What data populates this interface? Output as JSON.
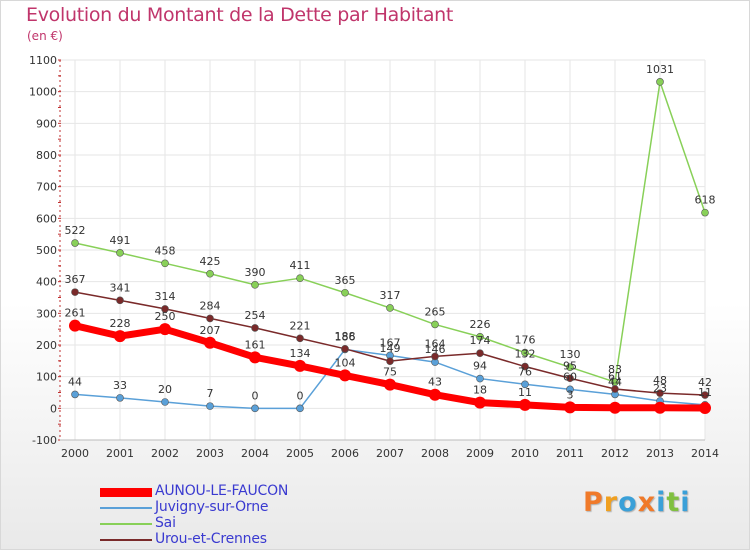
{
  "header": {
    "title": "Evolution du Montant de la Dette par Habitant",
    "unit": "(en €)"
  },
  "chart_data": {
    "type": "line",
    "title": "Evolution du Montant de la Dette par Habitant",
    "ylabel": "(en €)",
    "xlabel": "",
    "ylim": [
      -100,
      1100
    ],
    "yticks": [
      -100,
      0,
      100,
      200,
      300,
      400,
      500,
      600,
      700,
      800,
      900,
      1000,
      1100
    ],
    "x": [
      "2000",
      "2001",
      "2002",
      "2003",
      "2004",
      "2005",
      "2006",
      "2007",
      "2008",
      "2009",
      "2010",
      "2011",
      "2012",
      "2013",
      "2014"
    ],
    "grid": true,
    "legend_position": "bottom-left",
    "series": [
      {
        "name": "AUNOU-LE-FAUCON",
        "color": "#ff0000",
        "values": [
          261,
          228,
          250,
          207,
          161,
          134,
          104,
          75,
          43,
          18,
          11,
          3,
          2,
          2,
          1
        ],
        "labels": [
          "261",
          "228",
          "250",
          "207",
          "161",
          "134",
          "104",
          "75",
          "43",
          "18",
          "11",
          "3",
          "",
          "",
          ""
        ]
      },
      {
        "name": "Juvigny-sur-Orne",
        "color": "#5aa0d8",
        "values": [
          44,
          33,
          20,
          7,
          0,
          0,
          186,
          167,
          146,
          94,
          76,
          60,
          44,
          23,
          11
        ],
        "labels": [
          "44",
          "33",
          "20",
          "7",
          "0",
          "0",
          "186",
          "167",
          "146",
          "94",
          "76",
          "60",
          "44",
          "23",
          "11"
        ]
      },
      {
        "name": "Sai",
        "color": "#88d058",
        "values": [
          522,
          491,
          458,
          425,
          390,
          411,
          365,
          317,
          265,
          226,
          176,
          130,
          83,
          1031,
          618
        ],
        "labels": [
          "522",
          "491",
          "458",
          "425",
          "390",
          "411",
          "365",
          "317",
          "265",
          "226",
          "176",
          "130",
          "83",
          "1031",
          "618"
        ]
      },
      {
        "name": "Urou-et-Crennes",
        "color": "#7a2a2a",
        "values": [
          367,
          341,
          314,
          284,
          254,
          221,
          188,
          149,
          164,
          174,
          132,
          95,
          61,
          48,
          42
        ],
        "labels": [
          "367",
          "341",
          "314",
          "284",
          "254",
          "221",
          "188",
          "149",
          "164",
          "174",
          "132",
          "95",
          "61",
          "48",
          "42"
        ]
      }
    ]
  },
  "legend": {
    "items": [
      {
        "label": "AUNOU-LE-FAUCON",
        "color": "#ff0000"
      },
      {
        "label": "Juvigny-sur-Orne",
        "color": "#5aa0d8"
      },
      {
        "label": "Sai",
        "color": "#88d058"
      },
      {
        "label": "Urou-et-Crennes",
        "color": "#7a2a2a"
      }
    ]
  },
  "logo": {
    "text": "Proxiti",
    "colors": [
      "#f07a2a",
      "#f0a020",
      "#3aa0d8",
      "#f07a2a",
      "#3aa0d8",
      "#80c040",
      "#3aa0d8"
    ]
  }
}
